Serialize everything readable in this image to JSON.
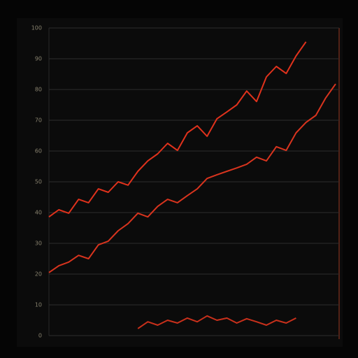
{
  "chart_data": {
    "type": "line",
    "categories": [
      null,
      null,
      null,
      null,
      null,
      null,
      null,
      null,
      null,
      null,
      null,
      null,
      null,
      null,
      null,
      null,
      null,
      null,
      null,
      null,
      null,
      null,
      null,
      null,
      null,
      null,
      null,
      null,
      null,
      null
    ],
    "series": [
      {
        "color": "#e0321c",
        "values": [
          38.6,
          40.9,
          39.8,
          44.3,
          43.2,
          47.7,
          46.6,
          50,
          48.9,
          53.4,
          56.8,
          59.1,
          62.5,
          60.2,
          65.9,
          68.2,
          64.8,
          70.5,
          72.7,
          75,
          79.5,
          76.1,
          84.1,
          87.5,
          85.2,
          90.9,
          95.5,
          null,
          null,
          null
        ]
      },
      {
        "color": "#d8341e",
        "values": [
          20.5,
          22.7,
          23.9,
          26.1,
          25,
          29.5,
          30.7,
          34.1,
          36.4,
          39.8,
          38.6,
          42,
          44.3,
          43.2,
          45.5,
          47.7,
          51.1,
          52.3,
          53.4,
          54.5,
          55.7,
          58,
          56.8,
          61.4,
          60.2,
          65.9,
          69.3,
          71.6,
          77.3,
          81.8
        ]
      },
      {
        "color": "#c9301b",
        "values": [
          null,
          null,
          null,
          null,
          null,
          null,
          null,
          null,
          null,
          2.3,
          4.5,
          3.4,
          5,
          4.1,
          5.7,
          4.5,
          6.4,
          5,
          5.7,
          4.1,
          5.5,
          4.5,
          3.4,
          5,
          4.1,
          5.7,
          null,
          null,
          null,
          null
        ]
      }
    ],
    "ylim": [
      0,
      100
    ],
    "yticks": [
      0,
      10,
      20,
      30,
      40,
      50,
      60,
      70,
      80,
      90,
      100
    ],
    "grid": true
  }
}
